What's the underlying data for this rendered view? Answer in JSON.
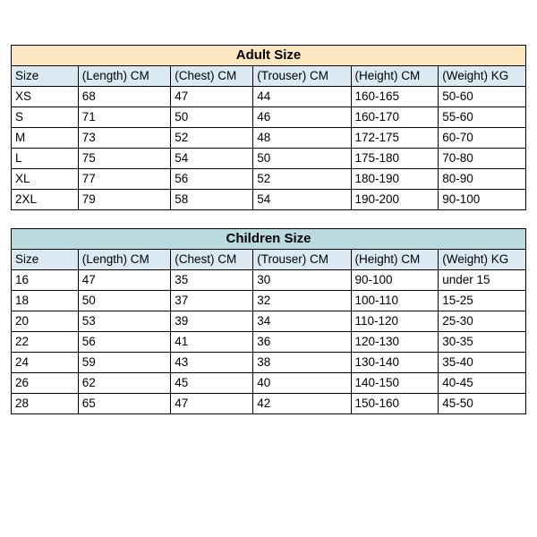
{
  "adult": {
    "title": "Adult Size",
    "title_bg": "#fbe6c0",
    "header_bg": "#dbeaf2",
    "columns": [
      "Size",
      "(Length) CM",
      "(Chest) CM",
      "(Trouser) CM",
      "(Height) CM",
      "(Weight) KG"
    ],
    "col_widths_pct": [
      13,
      18,
      16,
      19,
      17,
      17
    ],
    "rows": [
      [
        "XS",
        "68",
        "47",
        "44",
        "160-165",
        "50-60"
      ],
      [
        "S",
        "71",
        "50",
        "46",
        "160-170",
        "55-60"
      ],
      [
        "M",
        "73",
        "52",
        "48",
        "172-175",
        "60-70"
      ],
      [
        "L",
        "75",
        "54",
        "50",
        "175-180",
        "70-80"
      ],
      [
        "XL",
        "77",
        "56",
        "52",
        "180-190",
        "80-90"
      ],
      [
        "2XL",
        "79",
        "58",
        "54",
        "190-200",
        "90-100"
      ]
    ]
  },
  "children": {
    "title": "Children Size",
    "title_bg": "#b9dbe0",
    "header_bg": "#dbeaf2",
    "columns": [
      "Size",
      "(Length) CM",
      "(Chest) CM",
      "(Trouser) CM",
      "(Height) CM",
      "(Weight) KG"
    ],
    "col_widths_pct": [
      13,
      18,
      16,
      19,
      17,
      17
    ],
    "rows": [
      [
        "16",
        "47",
        "35",
        "30",
        "90-100",
        "under 15"
      ],
      [
        "18",
        "50",
        "37",
        "32",
        "100-110",
        "15-25"
      ],
      [
        "20",
        "53",
        "39",
        "34",
        "110-120",
        "25-30"
      ],
      [
        "22",
        "56",
        "41",
        "36",
        "120-130",
        "30-35"
      ],
      [
        "24",
        "59",
        "43",
        "38",
        "130-140",
        "35-40"
      ],
      [
        "26",
        "62",
        "45",
        "40",
        "140-150",
        "40-45"
      ],
      [
        "28",
        "65",
        "47",
        "42",
        "150-160",
        "45-50"
      ]
    ]
  }
}
